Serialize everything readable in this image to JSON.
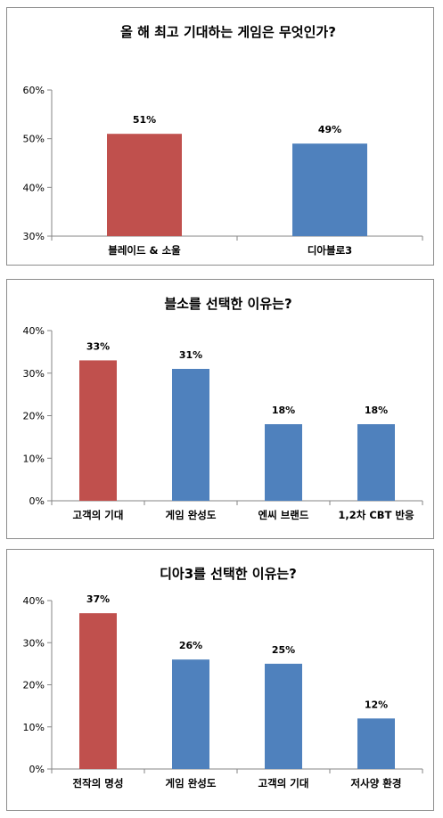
{
  "chart_data": [
    {
      "type": "bar",
      "title": "올 해 최고 기대하는 게임은 무엇인가?",
      "categories": [
        "블레이드 & 소울",
        "디아블로3"
      ],
      "values": [
        51,
        49
      ],
      "data_labels": [
        "51%",
        "49%"
      ],
      "ylim": [
        30,
        60
      ],
      "yticks": [
        30,
        40,
        50,
        60
      ],
      "ytick_labels": [
        "30%",
        "40%",
        "50%",
        "60%"
      ],
      "bar_colors": [
        "#c0504d",
        "#4f81bd"
      ],
      "grid": false,
      "legend": "none"
    },
    {
      "type": "bar",
      "title": "블소를 선택한 이유는?",
      "categories": [
        "고객의 기대",
        "게임 완성도",
        "엔씨 브랜드",
        "1,2차 CBT 반응"
      ],
      "values": [
        33,
        31,
        18,
        18
      ],
      "data_labels": [
        "33%",
        "31%",
        "18%",
        "18%"
      ],
      "ylim": [
        0,
        40
      ],
      "yticks": [
        0,
        10,
        20,
        30,
        40
      ],
      "ytick_labels": [
        "0%",
        "10%",
        "20%",
        "30%",
        "40%"
      ],
      "bar_colors": [
        "#c0504d",
        "#4f81bd",
        "#4f81bd",
        "#4f81bd"
      ],
      "grid": false,
      "legend": "none"
    },
    {
      "type": "bar",
      "title": "디아3를 선택한 이유는?",
      "categories": [
        "전작의 명성",
        "게임 완성도",
        "고객의 기대",
        "저사양 환경"
      ],
      "values": [
        37,
        26,
        25,
        12
      ],
      "data_labels": [
        "37%",
        "26%",
        "25%",
        "12%"
      ],
      "ylim": [
        0,
        40
      ],
      "yticks": [
        0,
        10,
        20,
        30,
        40
      ],
      "ytick_labels": [
        "0%",
        "10%",
        "20%",
        "30%",
        "40%"
      ],
      "bar_colors": [
        "#c0504d",
        "#4f81bd",
        "#4f81bd",
        "#4f81bd"
      ],
      "grid": false,
      "legend": "none"
    }
  ]
}
